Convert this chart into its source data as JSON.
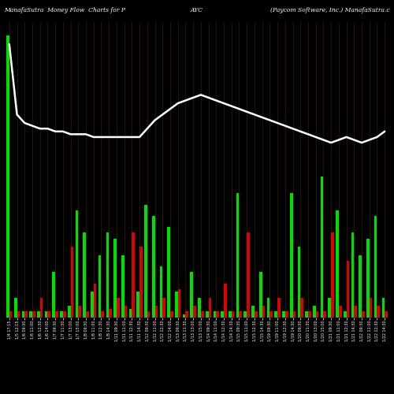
{
  "title_left": "ManafaSutra  Money Flow  Charts for P",
  "title_center": "AYC",
  "title_right": "(Paycom Software, Inc.) ManafaSutra.c",
  "bg_color": "#000000",
  "bar_color_pos": "#00dd00",
  "bar_color_neg": "#dd0000",
  "line_color": "#ffffff",
  "grid_color": "#2d1a00",
  "bar_width": 0.38,
  "buy_values": [
    100,
    7,
    2,
    2,
    2,
    2,
    16,
    2,
    4,
    38,
    30,
    9,
    22,
    30,
    28,
    22,
    3,
    9,
    40,
    36,
    18,
    32,
    9,
    1,
    16,
    7,
    2,
    2,
    2,
    2,
    44,
    2,
    4,
    16,
    7,
    2,
    2,
    44,
    25,
    2,
    4,
    50,
    7,
    38,
    2,
    30,
    22,
    28,
    36,
    7
  ],
  "sell_values": [
    2,
    2,
    2,
    2,
    7,
    2,
    2,
    2,
    25,
    4,
    2,
    12,
    2,
    3,
    7,
    4,
    30,
    25,
    2,
    4,
    7,
    2,
    10,
    2,
    4,
    2,
    7,
    2,
    12,
    2,
    2,
    30,
    2,
    4,
    2,
    7,
    2,
    2,
    7,
    2,
    2,
    2,
    30,
    4,
    20,
    4,
    2,
    7,
    4,
    2
  ],
  "line_values": [
    97,
    72,
    69,
    68,
    67,
    67,
    66,
    66,
    65,
    65,
    65,
    64,
    64,
    64,
    64,
    64,
    64,
    64,
    67,
    70,
    72,
    74,
    76,
    77,
    78,
    79,
    78,
    77,
    76,
    75,
    74,
    73,
    72,
    71,
    70,
    69,
    68,
    67,
    66,
    65,
    64,
    63,
    62,
    63,
    64,
    63,
    62,
    63,
    64,
    66
  ],
  "ylim_max": 105,
  "tick_labels": [
    "1/4 17:15",
    "1/5 12:15",
    "1/6 09:30",
    "1/6 11:00",
    "1/6 12:30",
    "1/6 14:00",
    "1/7 09:30",
    "1/7 11:30",
    "1/7 13:00",
    "1/7 15:00",
    "1/8 09:30",
    "1/8 11:00",
    "1/8 12:30",
    "1/8 14:30",
    "1/11 09:30",
    "1/11 11:00",
    "1/11 12:30",
    "1/11 14:30",
    "1/12 09:30",
    "1/12 11:00",
    "1/12 12:30",
    "1/12 14:00",
    "1/13 09:30",
    "1/13 11:30",
    "1/13 13:00",
    "1/13 15:00",
    "1/14 09:30",
    "1/14 11:00",
    "1/14 12:30",
    "1/14 14:30",
    "1/15 09:30",
    "1/15 11:00",
    "1/15 12:30",
    "1/15 14:30",
    "1/19 09:30",
    "1/19 11:00",
    "1/19 12:30",
    "1/19 14:30",
    "1/20 09:30",
    "1/20 11:30",
    "1/20 13:00",
    "1/20 15:00",
    "1/21 09:30",
    "1/21 11:00",
    "1/21 12:30",
    "1/21 14:30",
    "1/22 09:30",
    "1/22 11:00",
    "1/22 12:30",
    "1/22 14:30"
  ]
}
